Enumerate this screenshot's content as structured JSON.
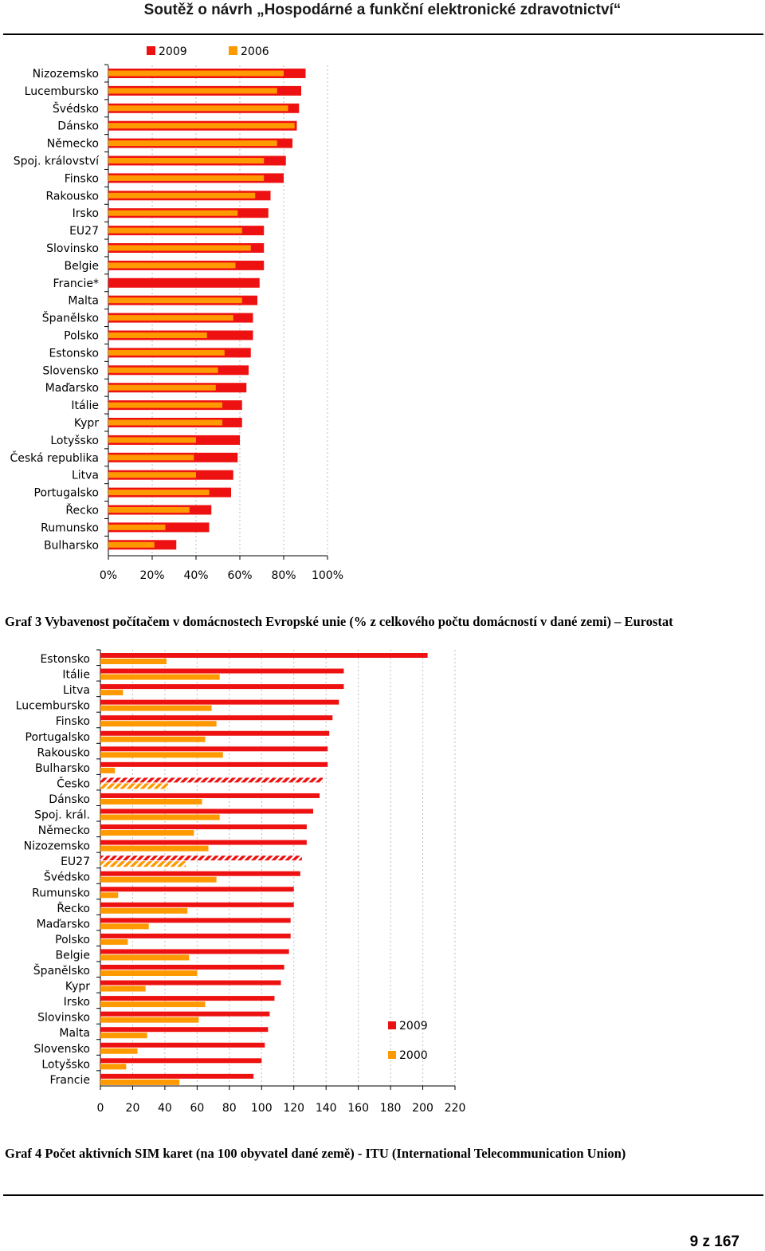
{
  "header": {
    "title": "Soutěž o návrh „Hospodárné a funkční elektronické zdravotnictví“"
  },
  "footer": {
    "page": "9 z 167"
  },
  "colors": {
    "series_2009": "#ee1111",
    "series_old": "#ff9900",
    "grid": "#bbbbbb"
  },
  "chart_data": [
    {
      "type": "bar",
      "orientation": "horizontal",
      "caption": "Graf 3 Vybavenost počítačem v domácnostech Evropské unie (% z celkového počtu domácností v dané zemi) – Eurostat",
      "legend": [
        "2009",
        "2006"
      ],
      "categories": [
        "Nizozemsko",
        "Lucembursko",
        "Švédsko",
        "Dánsko",
        "Německo",
        "Spoj. království",
        "Finsko",
        "Rakousko",
        "Irsko",
        "EU27",
        "Slovinsko",
        "Belgie",
        "Francie*",
        "Malta",
        "Španělsko",
        "Polsko",
        "Estonsko",
        "Slovensko",
        "Maďarsko",
        "Itálie",
        "Kypr",
        "Lotyšsko",
        "Česká republika",
        "Litva",
        "Portugalsko",
        "Řecko",
        "Rumunsko",
        "Bulharsko"
      ],
      "series": [
        {
          "name": "2009",
          "values": [
            90,
            88,
            87,
            86,
            84,
            81,
            80,
            74,
            73,
            71,
            71,
            71,
            69,
            68,
            66,
            66,
            65,
            64,
            63,
            61,
            61,
            60,
            59,
            57,
            56,
            47,
            46,
            31
          ]
        },
        {
          "name": "2006",
          "values": [
            80,
            77,
            82,
            85,
            77,
            71,
            71,
            67,
            59,
            61,
            65,
            58,
            null,
            61,
            57,
            45,
            53,
            50,
            49,
            52,
            52,
            40,
            39,
            40,
            46,
            37,
            26,
            21
          ]
        }
      ],
      "xticks": [
        "0%",
        "20%",
        "40%",
        "60%",
        "80%",
        "100%"
      ],
      "xlim": [
        0,
        100
      ]
    },
    {
      "type": "bar",
      "orientation": "horizontal",
      "caption": "Graf 4 Počet aktivních SIM karet (na 100 obyvatel dané země) - ITU (International Telecommunication Union)",
      "legend": [
        "2009",
        "2000"
      ],
      "categories": [
        "Estonsko",
        "Itálie",
        "Litva",
        "Lucembursko",
        "Finsko",
        "Portugalsko",
        "Rakousko",
        "Bulharsko",
        "Česko",
        "Dánsko",
        "Spoj. král.",
        "Německo",
        "Nizozemsko",
        "EU27",
        "Švédsko",
        "Rumunsko",
        "Řecko",
        "Maďarsko",
        "Polsko",
        "Belgie",
        "Španělsko",
        "Kypr",
        "Irsko",
        "Slovinsko",
        "Malta",
        "Slovensko",
        "Lotyšsko",
        "Francie"
      ],
      "hatched": [
        "Česko",
        "EU27"
      ],
      "series": [
        {
          "name": "2009",
          "values": [
            203,
            151,
            151,
            148,
            144,
            142,
            141,
            141,
            138,
            136,
            132,
            128,
            128,
            125,
            124,
            120,
            120,
            118,
            118,
            117,
            114,
            112,
            108,
            105,
            104,
            102,
            100,
            95
          ]
        },
        {
          "name": "2000",
          "values": [
            41,
            74,
            14,
            69,
            72,
            65,
            76,
            9,
            42,
            63,
            74,
            58,
            67,
            53,
            72,
            11,
            54,
            30,
            17,
            55,
            60,
            28,
            65,
            61,
            29,
            23,
            16,
            49
          ]
        }
      ],
      "xticks": [
        "0",
        "20",
        "40",
        "60",
        "80",
        "100",
        "120",
        "140",
        "160",
        "180",
        "200",
        "220"
      ],
      "xlim": [
        0,
        220
      ]
    }
  ]
}
